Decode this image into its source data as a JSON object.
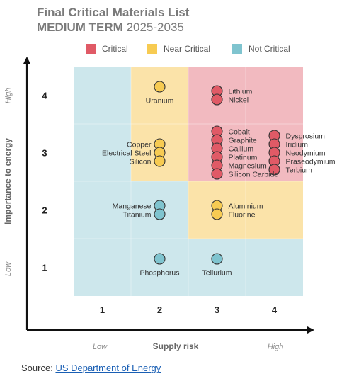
{
  "title": {
    "line1": "Final Critical Materials List",
    "line2_bold": "MEDIUM TERM",
    "line2_normal": "2025-2035"
  },
  "source": {
    "prefix": "Source:",
    "link_text": "US Department of Energy"
  },
  "colors": {
    "critical": "#e05a66",
    "critical_bg": "#f2bac0",
    "near_critical": "#f7cb52",
    "near_critical_bg": "#fbe3a9",
    "not_critical": "#7fc4cf",
    "not_critical_bg": "#cde7ec",
    "axis": "#111111",
    "label": "#333333",
    "muted": "#8a8a8a"
  },
  "chart_data": {
    "type": "scatter",
    "xlabel": "Supply risk",
    "ylabel": "Importance to energy",
    "x_low_label": "Low",
    "x_high_label": "High",
    "y_low_label": "Low",
    "y_high_label": "High",
    "x_ticks": [
      "1",
      "2",
      "3",
      "4"
    ],
    "y_ticks": [
      "1",
      "2",
      "3",
      "4"
    ],
    "xlim": [
      0.5,
      4.5
    ],
    "ylim": [
      0.5,
      4.5
    ],
    "legend": [
      {
        "key": "critical",
        "label": "Critical"
      },
      {
        "key": "near_critical",
        "label": "Near Critical"
      },
      {
        "key": "not_critical",
        "label": "Not Critical"
      }
    ],
    "zones": [
      {
        "x": 1,
        "y": 4,
        "category": "not_critical"
      },
      {
        "x": 2,
        "y": 4,
        "category": "near_critical"
      },
      {
        "x": 3,
        "y": 4,
        "category": "critical"
      },
      {
        "x": 4,
        "y": 4,
        "category": "critical"
      },
      {
        "x": 1,
        "y": 3,
        "category": "not_critical"
      },
      {
        "x": 2,
        "y": 3,
        "category": "near_critical"
      },
      {
        "x": 3,
        "y": 3,
        "category": "critical"
      },
      {
        "x": 4,
        "y": 3,
        "category": "critical"
      },
      {
        "x": 1,
        "y": 2,
        "category": "not_critical"
      },
      {
        "x": 2,
        "y": 2,
        "category": "not_critical"
      },
      {
        "x": 3,
        "y": 2,
        "category": "near_critical"
      },
      {
        "x": 4,
        "y": 2,
        "category": "near_critical"
      },
      {
        "x": 1,
        "y": 1,
        "category": "not_critical"
      },
      {
        "x": 2,
        "y": 1,
        "category": "not_critical"
      },
      {
        "x": 3,
        "y": 1,
        "category": "not_critical"
      },
      {
        "x": 4,
        "y": 1,
        "category": "not_critical"
      }
    ],
    "groups": [
      {
        "x": 2,
        "y": 4,
        "category": "near_critical",
        "labels": [
          "Uranium"
        ],
        "label_pos": "below"
      },
      {
        "x": 3,
        "y": 4,
        "category": "critical",
        "labels": [
          "Lithium",
          "Nickel"
        ],
        "label_pos": "right"
      },
      {
        "x": 2,
        "y": 3,
        "category": "near_critical",
        "labels": [
          "Copper",
          "Electrical Steel",
          "Silicon"
        ],
        "label_pos": "left"
      },
      {
        "x": 3,
        "y": 3,
        "category": "critical",
        "labels": [
          "Cobalt",
          "Graphite",
          "Gallium",
          "Platinum",
          "Magnesium",
          "Silicon Carbide"
        ],
        "label_pos": "right"
      },
      {
        "x": 4,
        "y": 3,
        "category": "critical",
        "labels": [
          "Dysprosium",
          "Iridium",
          "Neodymium",
          "Praseodymium",
          "Terbium"
        ],
        "label_pos": "right"
      },
      {
        "x": 2,
        "y": 2,
        "category": "not_critical",
        "labels": [
          "Manganese",
          "Titanium"
        ],
        "label_pos": "left"
      },
      {
        "x": 3,
        "y": 2,
        "category": "near_critical",
        "labels": [
          "Aluminium",
          "Fluorine"
        ],
        "label_pos": "right"
      },
      {
        "x": 2,
        "y": 1,
        "category": "not_critical",
        "labels": [
          "Phosphorus"
        ],
        "label_pos": "below"
      },
      {
        "x": 3,
        "y": 1,
        "category": "not_critical",
        "labels": [
          "Tellurium"
        ],
        "label_pos": "below"
      }
    ]
  }
}
